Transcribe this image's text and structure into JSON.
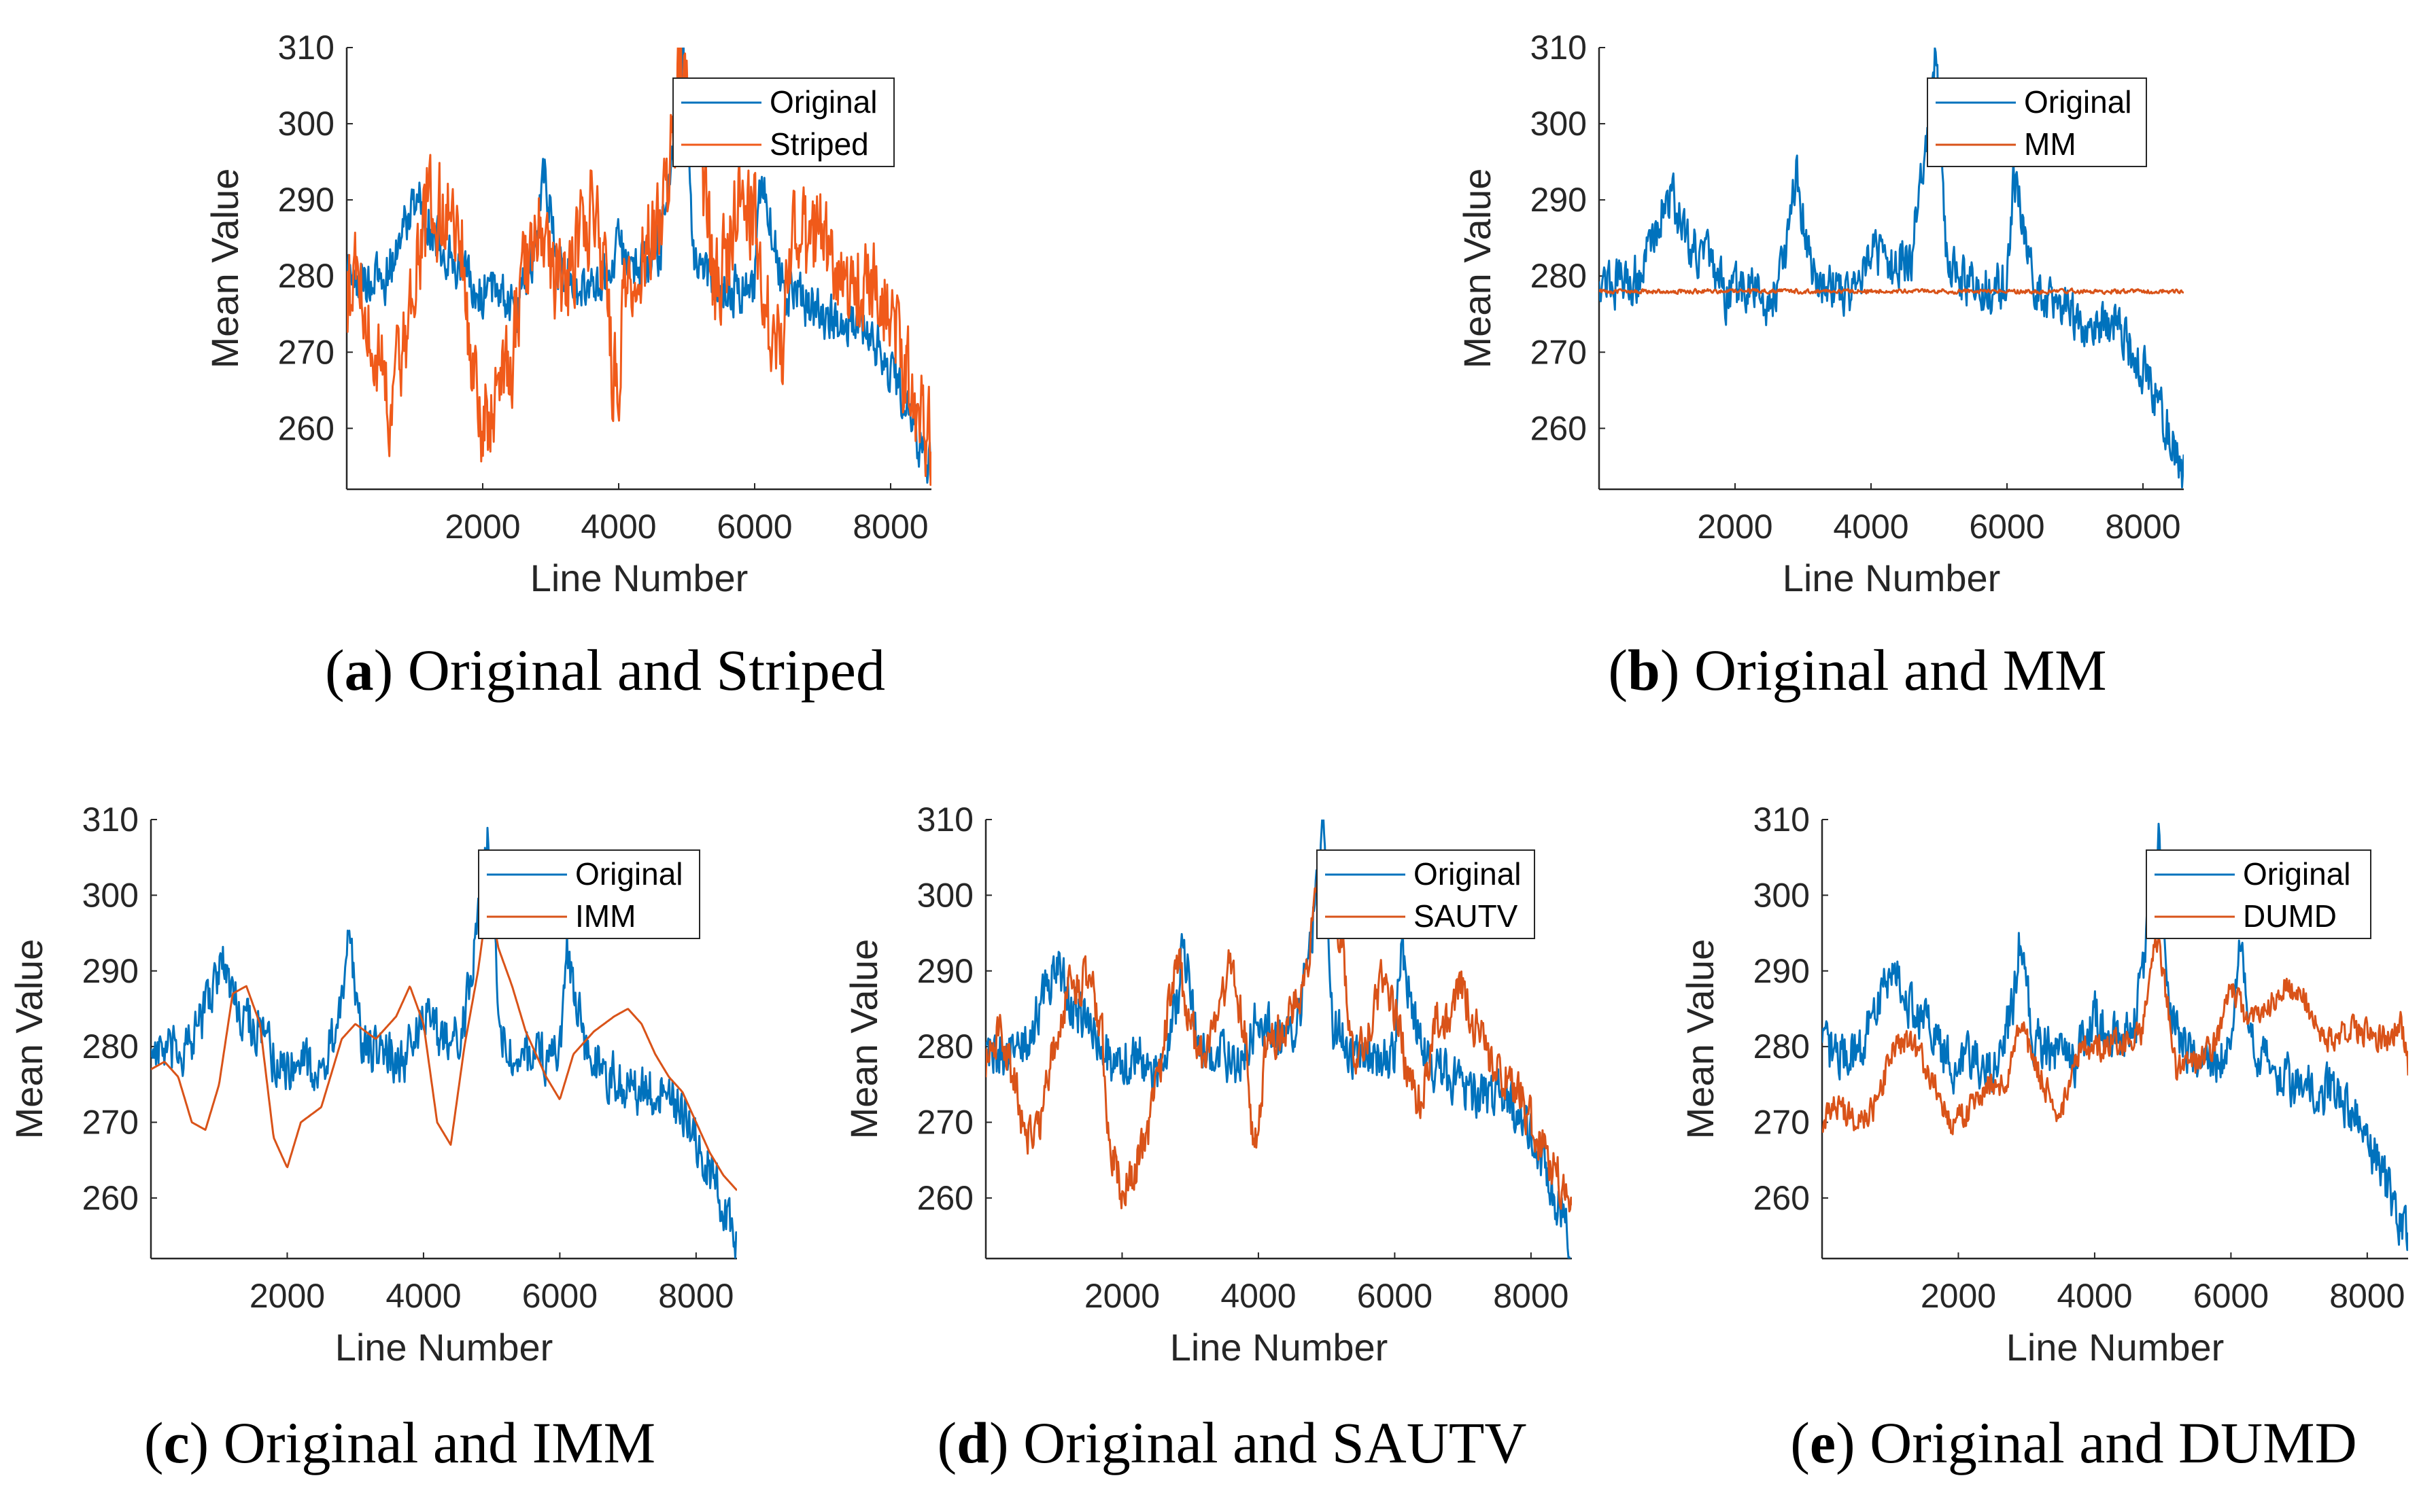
{
  "chart_data": [
    {
      "type": "line",
      "panel": "a",
      "caption_letter": "a",
      "caption_text": "Original and Striped",
      "xlabel": "Line Number",
      "ylabel": "Mean Value",
      "xlim": [
        0,
        8600
      ],
      "ylim": [
        252,
        310
      ],
      "xticks": [
        2000,
        4000,
        6000,
        8000
      ],
      "yticks": [
        260,
        270,
        280,
        290,
        300,
        310
      ],
      "legend_position": "top-right",
      "series": [
        {
          "name": "Original",
          "color": "#0072BD",
          "noise": 4.5,
          "width": 3,
          "x": [
            0,
            300,
            600,
            900,
            1050,
            1300,
            1600,
            1900,
            2200,
            2500,
            2800,
            2900,
            3100,
            3400,
            3700,
            4000,
            4300,
            4600,
            4850,
            4950,
            5100,
            5400,
            5700,
            6000,
            6100,
            6400,
            6800,
            7200,
            7600,
            7800,
            8100,
            8400,
            8600
          ],
          "y": [
            280,
            279,
            280,
            288,
            291,
            285,
            282,
            277,
            279,
            276,
            285,
            294,
            281,
            279,
            278,
            284,
            281,
            283,
            300,
            309,
            283,
            279,
            278,
            279,
            293,
            279,
            276,
            274,
            274,
            271,
            266,
            259,
            254
          ]
        },
        {
          "name": "Striped",
          "color": "#F05A1A",
          "noise": 9,
          "width": 3,
          "x": [
            0,
            200,
            400,
            600,
            800,
            1000,
            1200,
            1500,
            1700,
            1800,
            2000,
            2200,
            2400,
            2600,
            2800,
            3000,
            3200,
            3400,
            3600,
            3800,
            3900,
            4000,
            4100,
            4300,
            4500,
            4700,
            4900,
            5000,
            5200,
            5400,
            5600,
            5800,
            6000,
            6200,
            6400,
            6600,
            6800,
            7000,
            7200,
            7500,
            7800,
            8000,
            8200,
            8400,
            8600
          ],
          "y": [
            276,
            280,
            272,
            263,
            268,
            280,
            288,
            290,
            284,
            270,
            261,
            265,
            268,
            280,
            287,
            282,
            276,
            285,
            288,
            280,
            268,
            267,
            281,
            284,
            285,
            289,
            308,
            305,
            296,
            278,
            283,
            291,
            287,
            274,
            270,
            285,
            283,
            287,
            280,
            279,
            280,
            273,
            268,
            263,
            258
          ]
        }
      ]
    },
    {
      "type": "line",
      "panel": "b",
      "caption_letter": "b",
      "caption_text": "Original and MM",
      "xlabel": "Line Number",
      "ylabel": "Mean Value",
      "xlim": [
        0,
        8600
      ],
      "ylim": [
        252,
        310
      ],
      "xticks": [
        2000,
        4000,
        6000,
        8000
      ],
      "yticks": [
        260,
        270,
        280,
        290,
        300,
        310
      ],
      "legend_position": "top-right",
      "series": [
        {
          "name": "Original",
          "color": "#0072BD",
          "noise": 4.5,
          "width": 3,
          "x": [
            0,
            300,
            600,
            900,
            1050,
            1300,
            1600,
            1900,
            2200,
            2500,
            2800,
            2900,
            3100,
            3400,
            3700,
            4000,
            4300,
            4600,
            4850,
            4950,
            5100,
            5400,
            5700,
            6000,
            6100,
            6400,
            6800,
            7200,
            7600,
            7800,
            8100,
            8400,
            8600
          ],
          "y": [
            280,
            279,
            280,
            288,
            291,
            285,
            282,
            277,
            279,
            276,
            285,
            294,
            281,
            279,
            278,
            284,
            281,
            283,
            300,
            309,
            283,
            279,
            278,
            279,
            293,
            279,
            276,
            274,
            274,
            271,
            266,
            259,
            254
          ]
        },
        {
          "name": "MM",
          "color": "#D95319",
          "noise": 0.4,
          "width": 3,
          "x": [
            0,
            8600
          ],
          "y": [
            278,
            278
          ]
        }
      ]
    },
    {
      "type": "line",
      "panel": "c",
      "caption_letter": "c",
      "caption_text": "Original and IMM",
      "xlabel": "Line Number",
      "ylabel": "Mean Value",
      "xlim": [
        0,
        8600
      ],
      "ylim": [
        252,
        310
      ],
      "xticks": [
        2000,
        4000,
        6000,
        8000
      ],
      "yticks": [
        260,
        270,
        280,
        290,
        300,
        310
      ],
      "legend_position": "top-right",
      "series": [
        {
          "name": "Original",
          "color": "#0072BD",
          "noise": 4.5,
          "width": 3,
          "x": [
            0,
            300,
            600,
            900,
            1050,
            1300,
            1600,
            1900,
            2200,
            2500,
            2800,
            2900,
            3100,
            3400,
            3700,
            4000,
            4300,
            4600,
            4850,
            4950,
            5100,
            5400,
            5700,
            6000,
            6100,
            6400,
            6800,
            7200,
            7600,
            7800,
            8100,
            8400,
            8600
          ],
          "y": [
            280,
            279,
            280,
            288,
            291,
            285,
            282,
            277,
            279,
            276,
            285,
            294,
            281,
            279,
            278,
            284,
            281,
            283,
            300,
            309,
            283,
            279,
            278,
            279,
            293,
            279,
            276,
            274,
            274,
            271,
            266,
            259,
            254
          ]
        },
        {
          "name": "IMM",
          "color": "#D95319",
          "noise": 0,
          "width": 3,
          "x": [
            0,
            200,
            400,
            600,
            800,
            1000,
            1200,
            1400,
            1600,
            1800,
            2000,
            2200,
            2500,
            2800,
            3000,
            3300,
            3600,
            3800,
            4000,
            4200,
            4400,
            4600,
            4800,
            4950,
            5100,
            5300,
            5500,
            5800,
            6000,
            6200,
            6500,
            6800,
            7000,
            7200,
            7400,
            7600,
            7800,
            8000,
            8200,
            8400,
            8600
          ],
          "y": [
            277,
            278,
            276,
            270,
            269,
            275,
            287,
            288,
            283,
            268,
            264,
            270,
            272,
            281,
            283,
            281,
            284,
            288,
            283,
            270,
            267,
            280,
            290,
            300,
            293,
            288,
            282,
            276,
            273,
            279,
            282,
            284,
            285,
            283,
            279,
            276,
            274,
            270,
            266,
            263,
            261
          ]
        }
      ]
    },
    {
      "type": "line",
      "panel": "d",
      "caption_letter": "d",
      "caption_text": "Original and SAUTV",
      "xlabel": "Line Number",
      "ylabel": "Mean Value",
      "xlim": [
        0,
        8600
      ],
      "ylim": [
        252,
        310
      ],
      "xticks": [
        2000,
        4000,
        6000,
        8000
      ],
      "yticks": [
        260,
        270,
        280,
        290,
        300,
        310
      ],
      "legend_position": "top-right",
      "series": [
        {
          "name": "Original",
          "color": "#0072BD",
          "noise": 4.5,
          "width": 3,
          "x": [
            0,
            300,
            600,
            900,
            1050,
            1300,
            1600,
            1900,
            2200,
            2500,
            2800,
            2900,
            3100,
            3400,
            3700,
            4000,
            4300,
            4600,
            4850,
            4950,
            5100,
            5400,
            5700,
            6000,
            6100,
            6400,
            6800,
            7200,
            7600,
            7800,
            8100,
            8400,
            8600
          ],
          "y": [
            280,
            279,
            280,
            288,
            291,
            285,
            282,
            277,
            279,
            276,
            285,
            294,
            281,
            279,
            278,
            284,
            281,
            283,
            300,
            309,
            283,
            279,
            278,
            279,
            293,
            279,
            276,
            274,
            274,
            271,
            266,
            259,
            254
          ]
        },
        {
          "name": "SAUTV",
          "color": "#D95319",
          "noise": 4,
          "width": 3,
          "x": [
            0,
            200,
            400,
            600,
            800,
            1000,
            1200,
            1500,
            1700,
            1800,
            2000,
            2200,
            2400,
            2600,
            2800,
            3000,
            3200,
            3400,
            3600,
            3800,
            3900,
            4000,
            4100,
            4300,
            4500,
            4700,
            4900,
            5000,
            5200,
            5400,
            5600,
            5800,
            6000,
            6200,
            6400,
            6600,
            6800,
            7000,
            7200,
            7500,
            7800,
            8000,
            8200,
            8400,
            8600
          ],
          "y": [
            278,
            282,
            276,
            268,
            270,
            280,
            287,
            289,
            283,
            268,
            261,
            264,
            269,
            280,
            293,
            283,
            277,
            285,
            291,
            282,
            270,
            267,
            280,
            282,
            285,
            288,
            306,
            303,
            295,
            278,
            282,
            289,
            285,
            276,
            272,
            283,
            284,
            288,
            282,
            277,
            275,
            270,
            266,
            263,
            259
          ]
        }
      ]
    },
    {
      "type": "line",
      "panel": "e",
      "caption_letter": "e",
      "caption_text": "Original and DUMD",
      "xlabel": "Line Number",
      "ylabel": "Mean Value",
      "xlim": [
        0,
        8600
      ],
      "ylim": [
        252,
        310
      ],
      "xticks": [
        2000,
        4000,
        6000,
        8000
      ],
      "yticks": [
        260,
        270,
        280,
        290,
        300,
        310
      ],
      "legend_position": "top-right",
      "series": [
        {
          "name": "Original",
          "color": "#0072BD",
          "noise": 4.5,
          "width": 3,
          "x": [
            0,
            300,
            600,
            900,
            1050,
            1300,
            1600,
            1900,
            2200,
            2500,
            2800,
            2900,
            3100,
            3400,
            3700,
            4000,
            4300,
            4600,
            4850,
            4950,
            5100,
            5400,
            5700,
            6000,
            6100,
            6400,
            6800,
            7200,
            7600,
            7800,
            8100,
            8400,
            8600
          ],
          "y": [
            280,
            279,
            280,
            288,
            291,
            285,
            282,
            277,
            279,
            276,
            285,
            294,
            281,
            279,
            278,
            284,
            281,
            283,
            300,
            309,
            283,
            279,
            278,
            279,
            293,
            279,
            276,
            274,
            274,
            271,
            266,
            259,
            254
          ]
        },
        {
          "name": "DUMD",
          "color": "#D95319",
          "noise": 2.5,
          "width": 3,
          "x": [
            0,
            200,
            500,
            800,
            1000,
            1300,
            1600,
            1900,
            2100,
            2400,
            2700,
            2900,
            3200,
            3500,
            3800,
            4100,
            4400,
            4700,
            4900,
            5000,
            5200,
            5500,
            5800,
            6000,
            6200,
            6500,
            6800,
            7100,
            7400,
            7700,
            8000,
            8300,
            8500,
            8600
          ],
          "y": [
            270,
            272,
            270,
            272,
            279,
            281,
            276,
            270,
            271,
            275,
            275,
            283,
            276,
            271,
            280,
            280,
            281,
            282,
            294,
            290,
            277,
            278,
            281,
            288,
            284,
            285,
            288,
            286,
            281,
            282,
            282,
            281,
            283,
            277
          ]
        }
      ]
    }
  ]
}
